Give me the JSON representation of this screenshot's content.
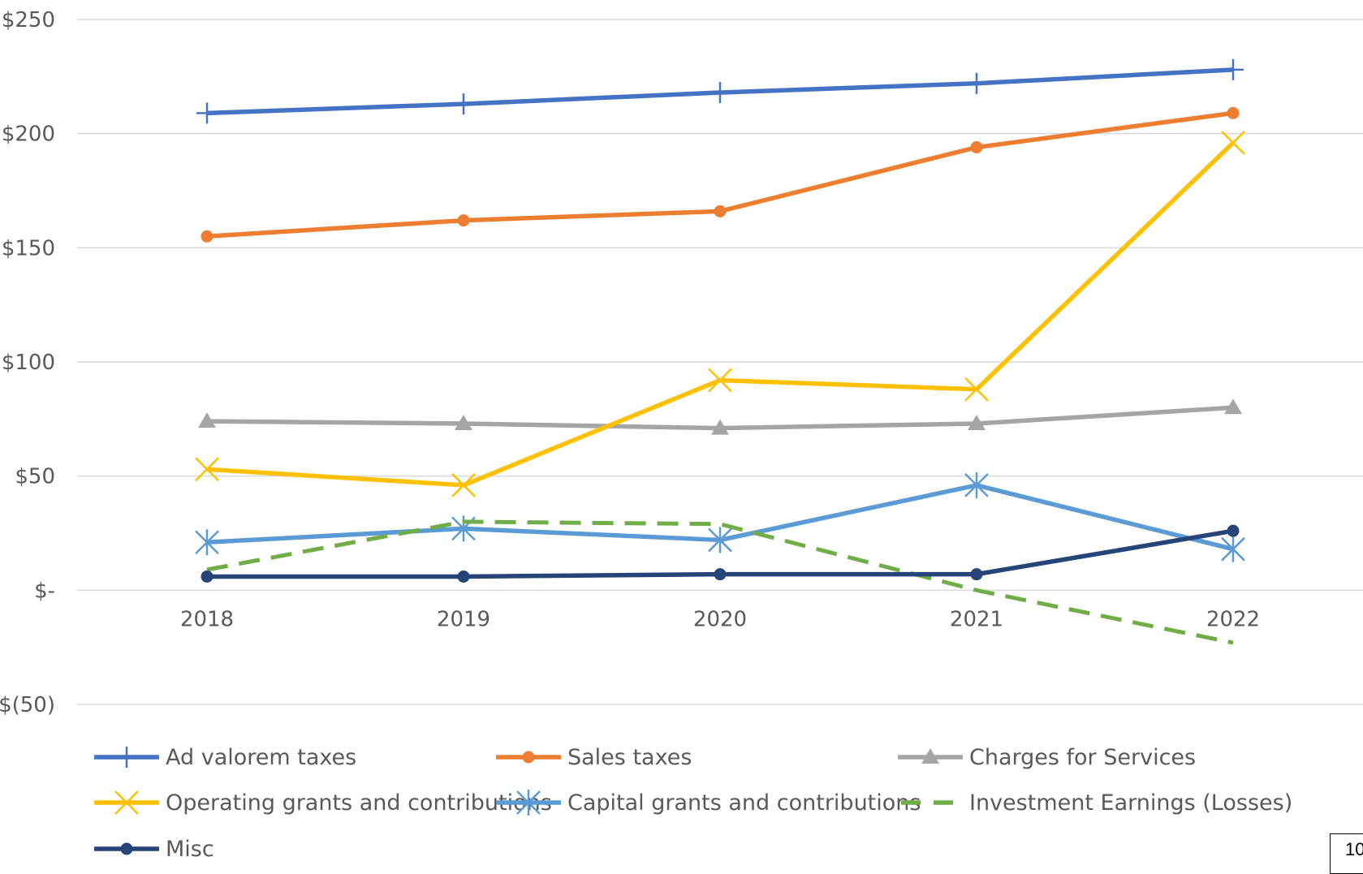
{
  "page_number": "10",
  "chart_data": {
    "type": "line",
    "title": "",
    "xlabel": "",
    "ylabel": "",
    "x": [
      "2018",
      "2019",
      "2020",
      "2021",
      "2022"
    ],
    "ylim": [
      -50,
      250
    ],
    "yticks": [
      250,
      200,
      150,
      100,
      50,
      0,
      -50
    ],
    "ytick_labels": [
      "$250",
      "$200",
      "$150",
      "$100",
      "$50",
      "$-",
      "$(50)"
    ],
    "grid": true,
    "legend_position": "bottom",
    "series": [
      {
        "name": "Ad valorem taxes",
        "color": "#4472C4",
        "marker": "plus",
        "dash": "solid",
        "values": [
          209,
          213,
          218,
          222,
          228
        ]
      },
      {
        "name": "Sales taxes",
        "color": "#ED7D31",
        "marker": "circle",
        "dash": "solid",
        "values": [
          155,
          162,
          166,
          194,
          209
        ]
      },
      {
        "name": "Charges for Services",
        "color": "#A5A5A5",
        "marker": "triangle",
        "dash": "solid",
        "values": [
          74,
          73,
          71,
          73,
          80
        ]
      },
      {
        "name": "Operating grants and contributions",
        "color": "#FFC000",
        "marker": "x",
        "dash": "solid",
        "values": [
          53,
          46,
          92,
          88,
          196
        ]
      },
      {
        "name": "Capital grants and contributions",
        "color": "#5B9BD5",
        "marker": "star",
        "dash": "solid",
        "values": [
          21,
          27,
          22,
          46,
          18
        ]
      },
      {
        "name": "Investment Earnings (Losses)",
        "color": "#70AD47",
        "marker": "none",
        "dash": "dashed",
        "values": [
          9,
          30,
          29,
          0,
          -23
        ]
      },
      {
        "name": "Misc",
        "color": "#264478",
        "marker": "circle",
        "dash": "solid",
        "values": [
          6,
          6,
          7,
          7,
          26
        ]
      }
    ]
  }
}
